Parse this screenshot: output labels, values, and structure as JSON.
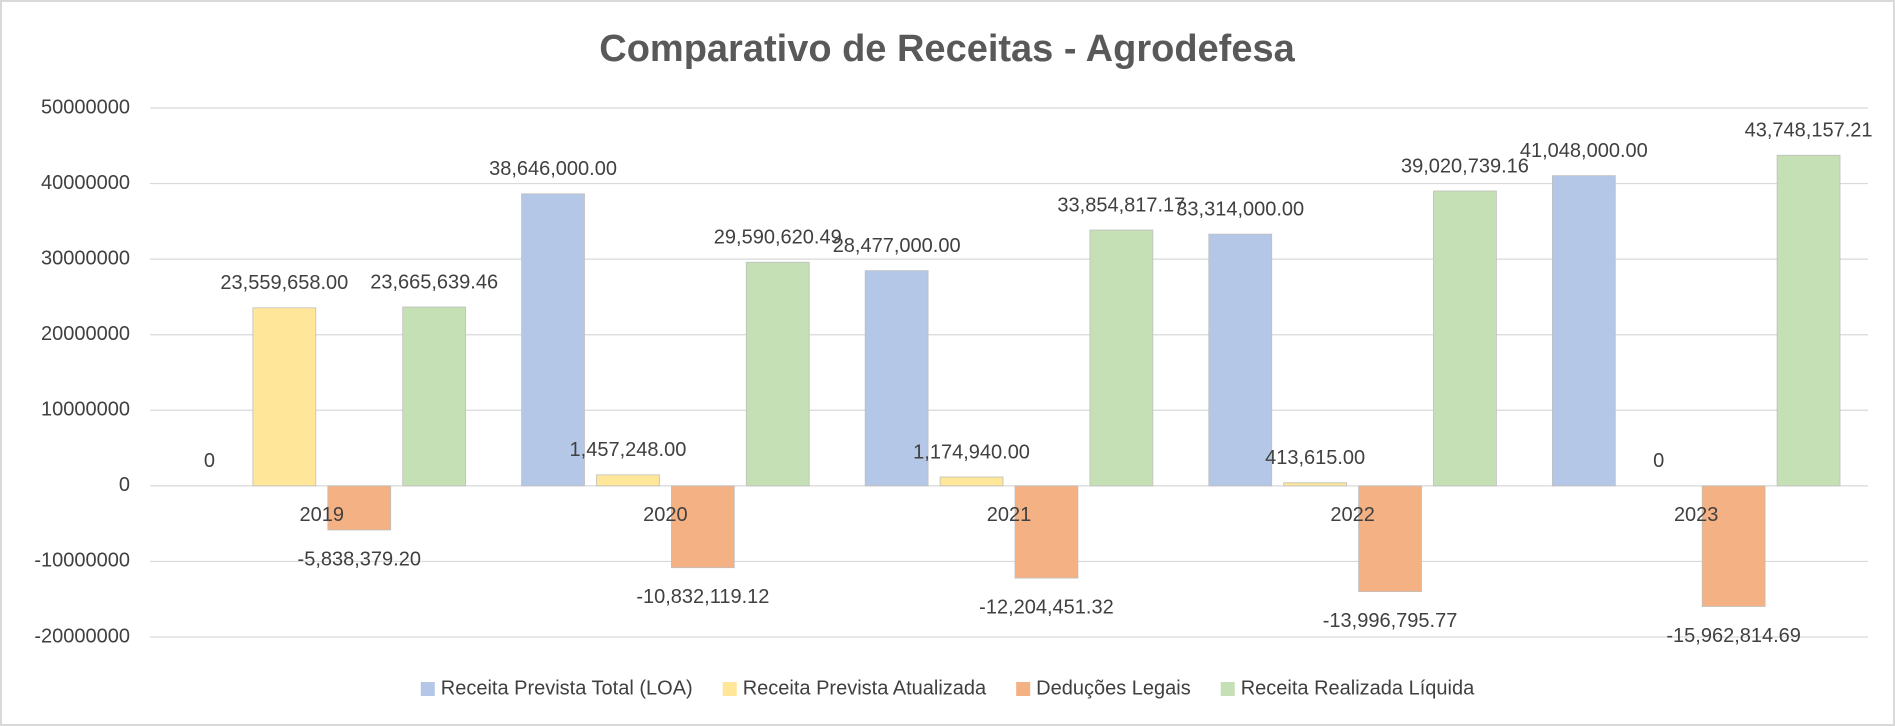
{
  "chart_data": {
    "type": "bar",
    "title": "Comparativo de Receitas - Agrodefesa",
    "categories": [
      "2019",
      "2020",
      "2021",
      "2022",
      "2023"
    ],
    "series": [
      {
        "name": "Receita Prevista Total (LOA)",
        "color": "#b4c7e7",
        "values": [
          0,
          38646000,
          28477000,
          33314000,
          41048000
        ],
        "value_labels": [
          "0",
          "38,646,000.00",
          "28,477,000.00",
          "33,314,000.00",
          "41,048,000.00"
        ]
      },
      {
        "name": "Receita Prevista Atualizada",
        "color": "#ffe699",
        "values": [
          23559658,
          1457248,
          1174940,
          413615,
          0
        ],
        "value_labels": [
          "23,559,658.00",
          "1,457,248.00",
          "1,174,940.00",
          "413,615.00",
          "0"
        ]
      },
      {
        "name": "Deduções Legais",
        "color": "#f4b183",
        "values": [
          -5838379.2,
          -10832119.12,
          -12204451.32,
          -13996795.77,
          -15962814.69
        ],
        "value_labels": [
          "-5,838,379.20",
          "-10,832,119.12",
          "-12,204,451.32",
          "-13,996,795.77",
          "-15,962,814.69"
        ]
      },
      {
        "name": "Receita Realizada Líquida",
        "color": "#c5e0b4",
        "values": [
          23665639.46,
          29590620.49,
          33854817.17,
          39020739.16,
          43748157.21
        ],
        "value_labels": [
          "23,665,639.46",
          "29,590,620.49",
          "33,854,817.17",
          "39,020,739.16",
          "43,748,157.21"
        ]
      }
    ],
    "ylim": [
      -20000000,
      50000000
    ],
    "yticks": [
      -20000000,
      -10000000,
      0,
      10000000,
      20000000,
      30000000,
      40000000,
      50000000
    ],
    "grid": true,
    "legend": "bottom"
  }
}
